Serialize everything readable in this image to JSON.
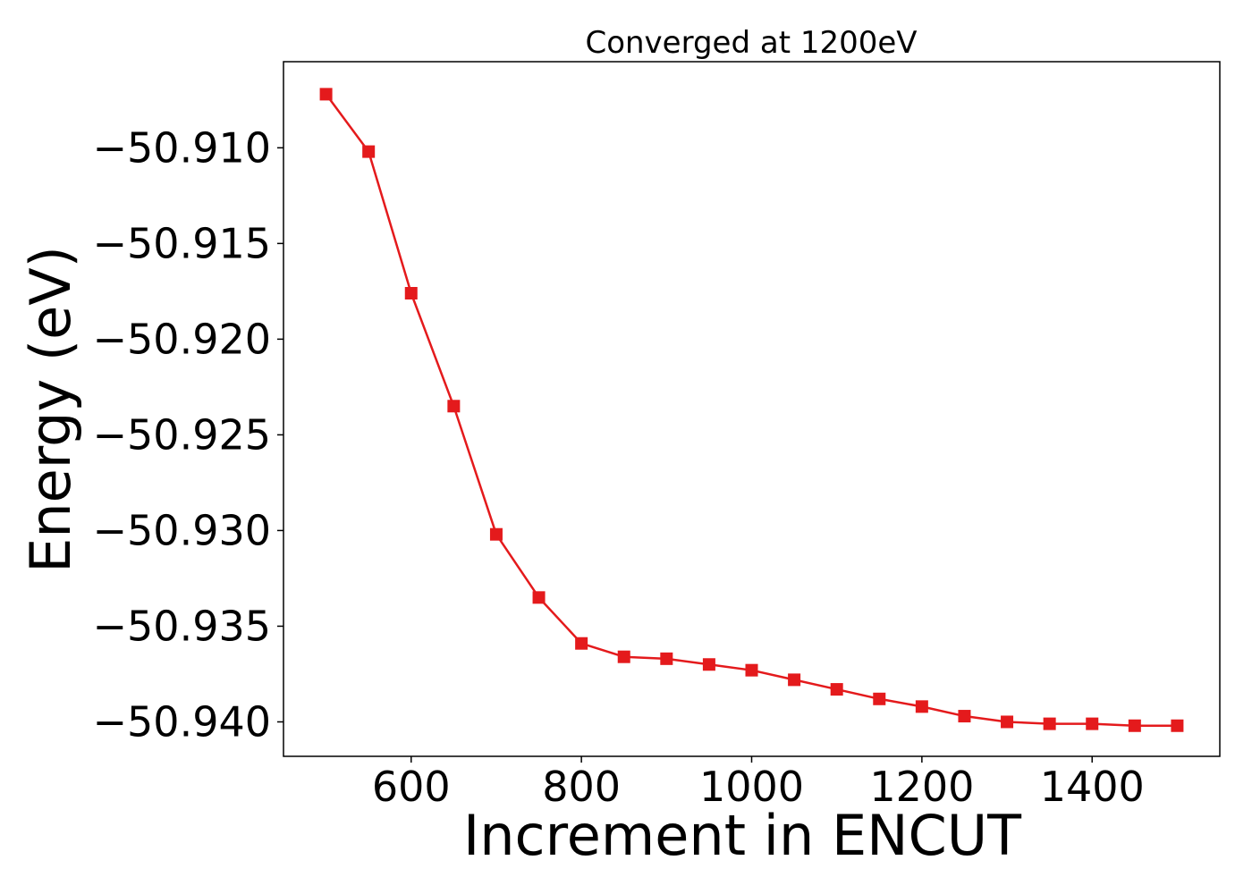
{
  "chart_data": {
    "type": "line",
    "title": "Converged at 1200eV",
    "xlabel": "Increment in ENCUT",
    "ylabel": "Energy (eV)",
    "xlim": [
      450,
      1550
    ],
    "ylim": [
      -50.9418,
      -50.9055
    ],
    "x_ticks": [
      600,
      800,
      1000,
      1200,
      1400
    ],
    "y_ticks": [
      -50.94,
      -50.935,
      -50.93,
      -50.925,
      -50.92,
      -50.915,
      -50.91
    ],
    "y_tick_labels": [
      "−50.940",
      "−50.935",
      "−50.930",
      "−50.925",
      "−50.920",
      "−50.915",
      "−50.910"
    ],
    "grid": false,
    "series": [
      {
        "color": "#e41a1c",
        "marker": "square",
        "x": [
          500,
          550,
          600,
          650,
          700,
          750,
          800,
          850,
          900,
          950,
          1000,
          1050,
          1100,
          1150,
          1200,
          1250,
          1300,
          1350,
          1400,
          1450,
          1500
        ],
        "y": [
          -50.9072,
          -50.9102,
          -50.9176,
          -50.9235,
          -50.9302,
          -50.9335,
          -50.9359,
          -50.9366,
          -50.9367,
          -50.937,
          -50.9373,
          -50.9378,
          -50.9383,
          -50.9388,
          -50.9392,
          -50.9397,
          -50.94,
          -50.9401,
          -50.9401,
          -50.9402,
          -50.9402
        ]
      }
    ]
  }
}
